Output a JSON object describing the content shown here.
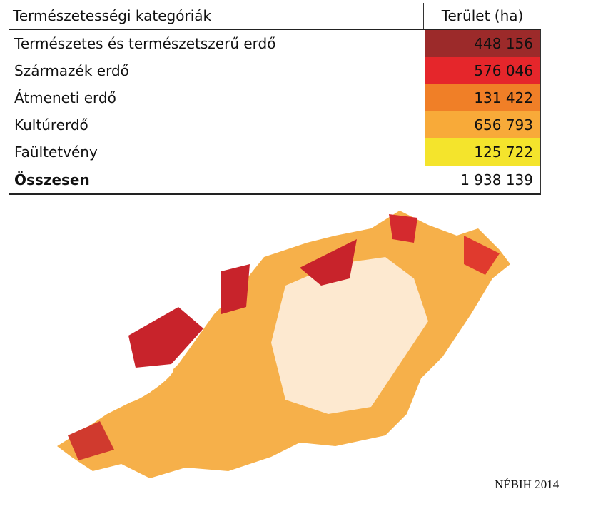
{
  "table": {
    "header": [
      "Természetességi kategóriák",
      "Terület (ha)"
    ],
    "rows": [
      [
        "Természetes és természetszerű erdő",
        "448 156"
      ],
      [
        "Származék erdő",
        "576 046"
      ],
      [
        "Átmeneti erdő",
        "131 422"
      ],
      [
        "Kultúrerdő",
        "656 793"
      ],
      [
        "Faültetvény",
        "125 722"
      ]
    ],
    "total": [
      "Összesen",
      "1 938 139"
    ]
  },
  "source": "NÉBIH 2014"
}
